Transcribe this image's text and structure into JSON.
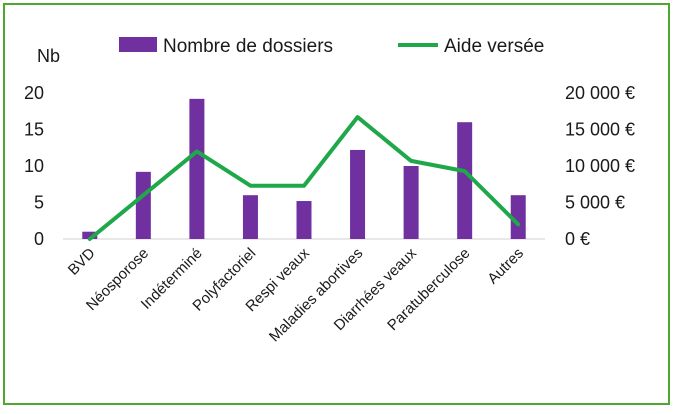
{
  "chart_data": {
    "type": "bar+line",
    "categories": [
      "BVD",
      "Néosporose",
      "Indéterminé",
      "Polyfactoriel",
      "Respi veaux",
      "Maladies abortives",
      "Diarrhées veaux",
      "Paratuberculose",
      "Autres"
    ],
    "series": [
      {
        "name": "Nombre de dossiers",
        "type": "bar",
        "axis": "left",
        "color": "#7030a0",
        "values": [
          1,
          9.2,
          19.2,
          6,
          5.2,
          12.2,
          10,
          16,
          6
        ]
      },
      {
        "name": "Aide versée",
        "type": "line",
        "axis": "right",
        "color": "#1fa84a",
        "values": [
          0,
          6000,
          12000,
          7300,
          7300,
          16700,
          10700,
          9300,
          2000
        ]
      }
    ],
    "y_left": {
      "label": "Nb",
      "ylim": [
        0,
        20
      ],
      "ticks": [
        "0",
        "5",
        "10",
        "15",
        "20"
      ]
    },
    "y_right": {
      "ylim": [
        0,
        20000
      ],
      "ticks": [
        "0 €",
        "5 000 €",
        "10 000 €",
        "15 000 €",
        "20 000 €"
      ]
    },
    "legend_position": "top",
    "grid": false
  }
}
